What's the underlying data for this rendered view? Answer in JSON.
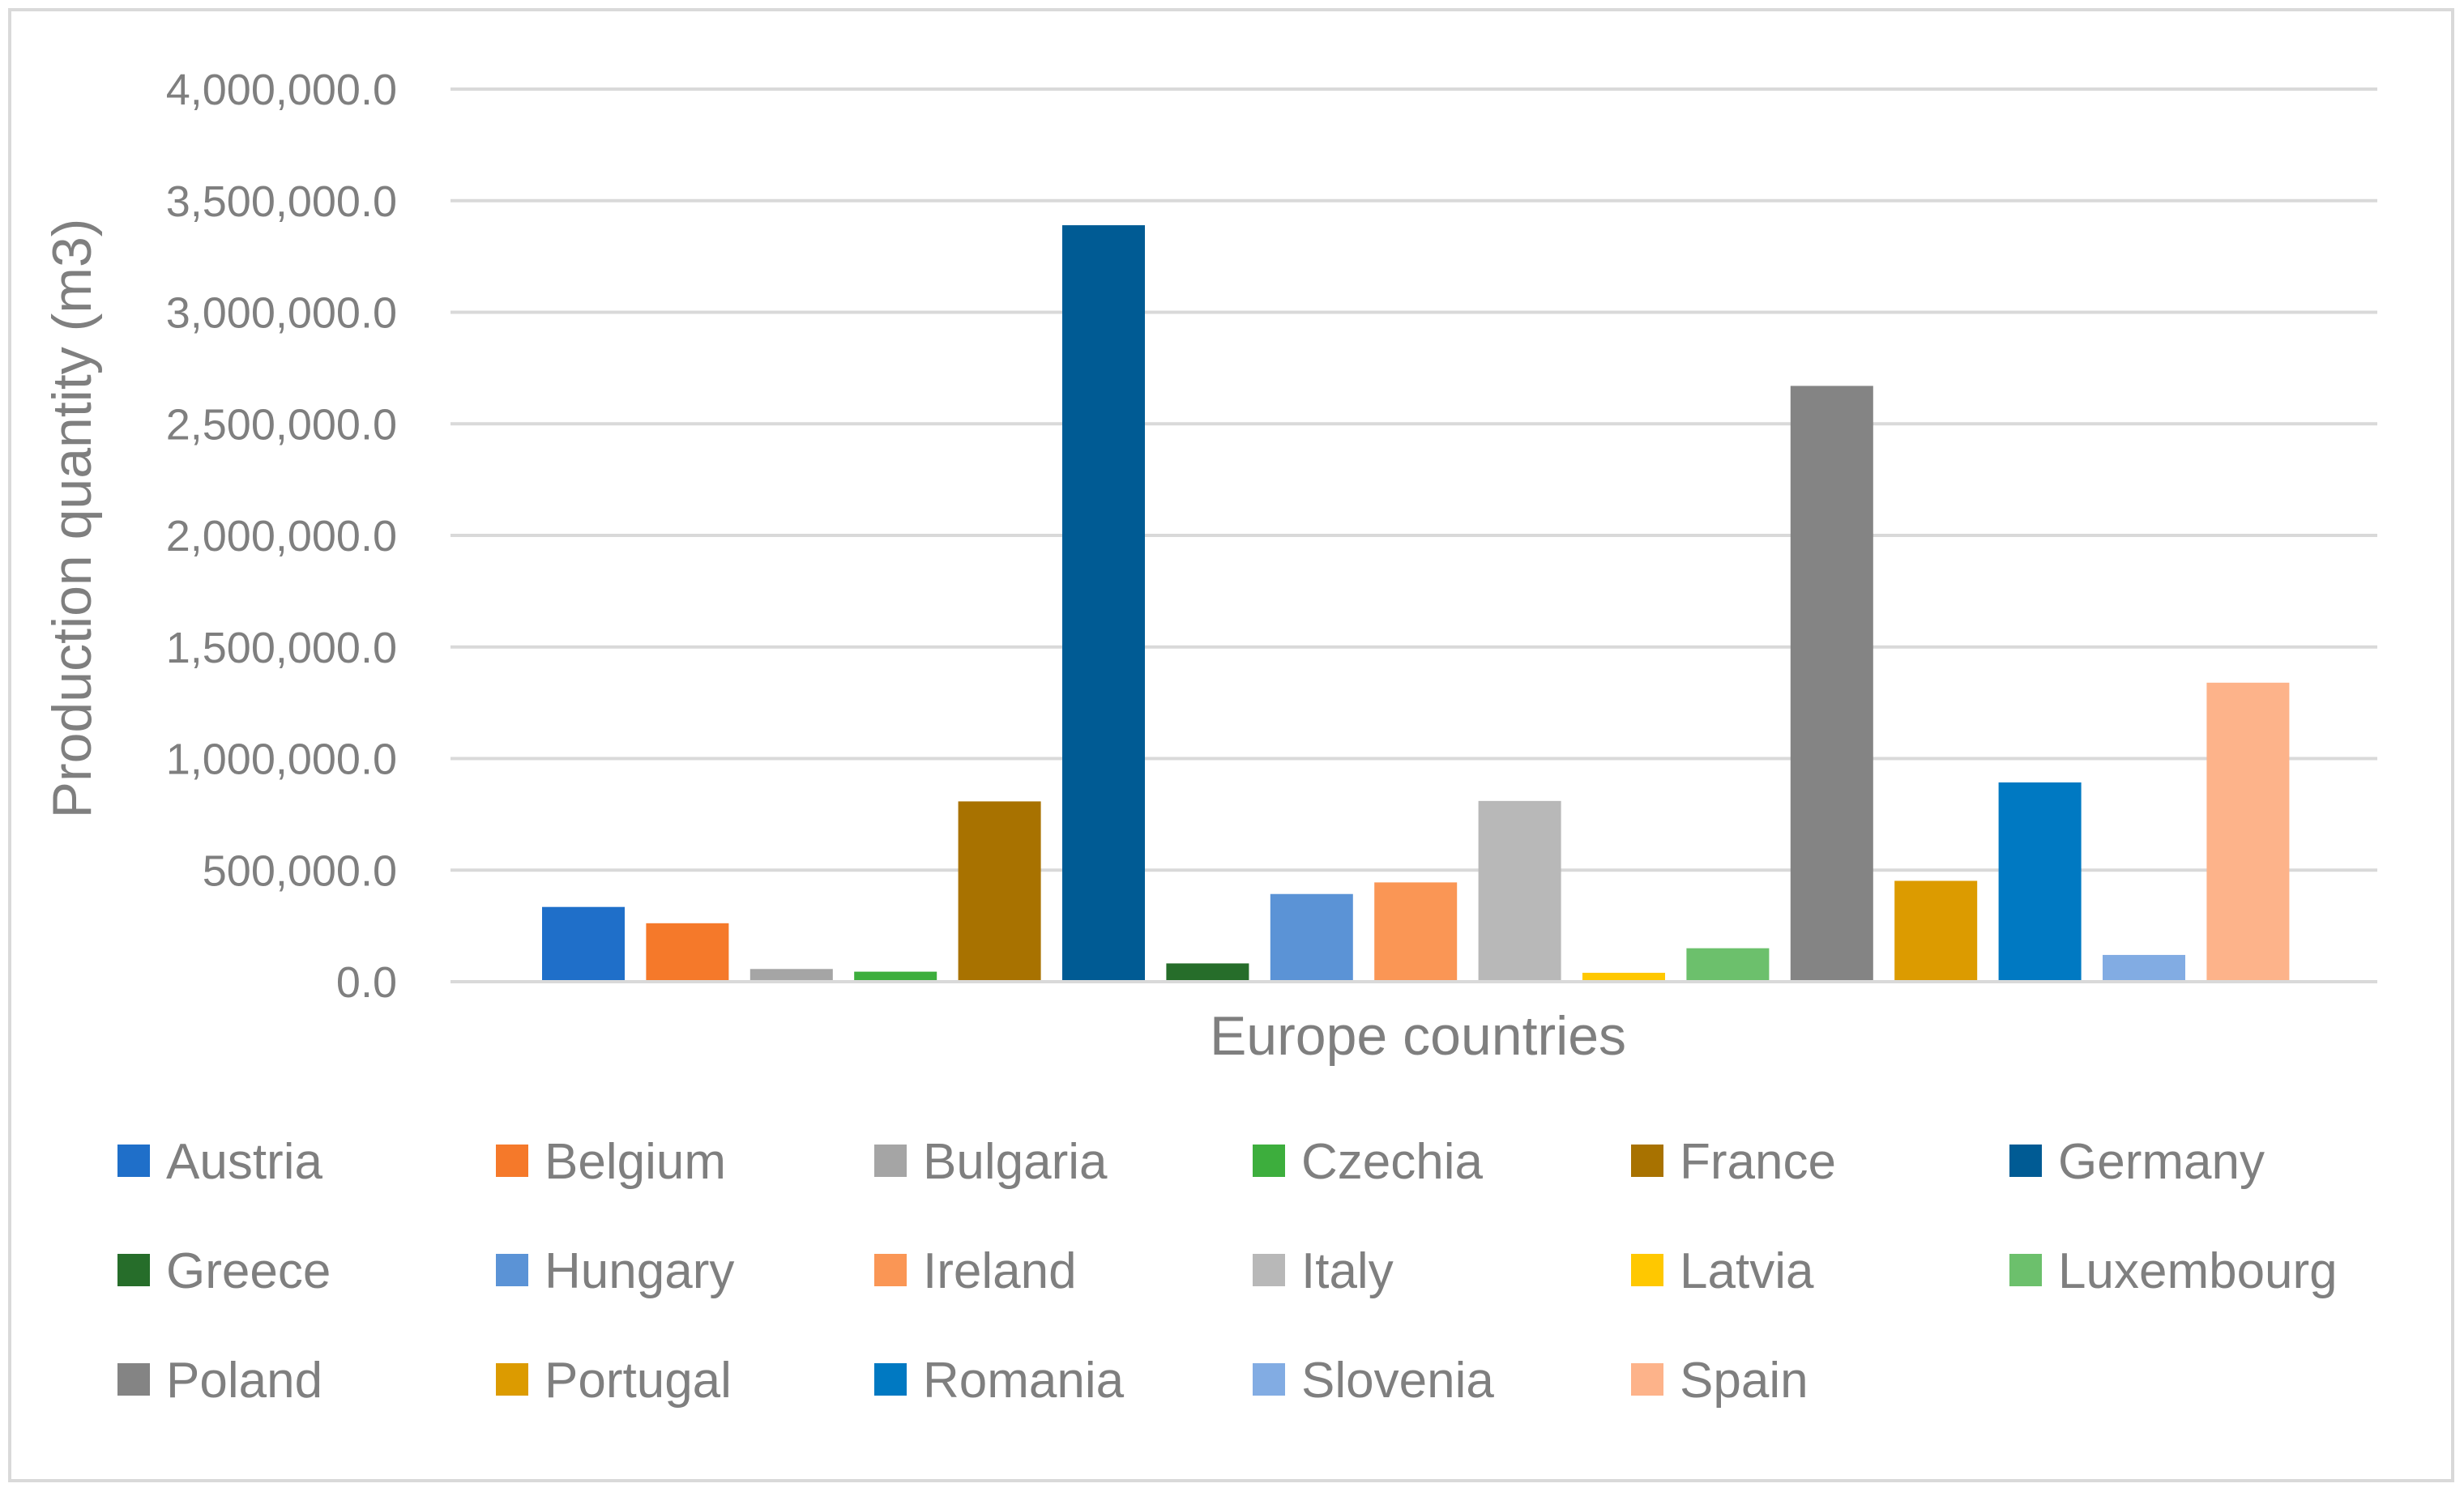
{
  "chart_data": {
    "type": "bar",
    "title": "",
    "xlabel": "Europe countries",
    "ylabel": "Production quantity (m3)",
    "ylim": [
      0,
      4000000
    ],
    "ytick_step": 500000,
    "yticks": [
      "0.0",
      "500,000.0",
      "1,000,000.0",
      "1,500,000.0",
      "2,000,000.0",
      "2,500,000.0",
      "3,000,000.0",
      "3,500,000.0",
      "4,000,000.0"
    ],
    "grid": true,
    "legend_position": "bottom",
    "series": [
      {
        "name": "Austria",
        "value": 335000,
        "color": "#1f6fc9"
      },
      {
        "name": "Belgium",
        "value": 262000,
        "color": "#f5792a"
      },
      {
        "name": "Bulgaria",
        "value": 57000,
        "color": "#a5a5a5"
      },
      {
        "name": "Czechia",
        "value": 45000,
        "color": "#3dae3d"
      },
      {
        "name": "France",
        "value": 808000,
        "color": "#a87200"
      },
      {
        "name": "Germany",
        "value": 3390000,
        "color": "#005b94"
      },
      {
        "name": "Greece",
        "value": 82000,
        "color": "#266d2a"
      },
      {
        "name": "Hungary",
        "value": 393000,
        "color": "#5b93d6"
      },
      {
        "name": "Ireland",
        "value": 445000,
        "color": "#fa9655"
      },
      {
        "name": "Italy",
        "value": 810000,
        "color": "#b8b8b8"
      },
      {
        "name": "Latvia",
        "value": 40000,
        "color": "#ffc800"
      },
      {
        "name": "Luxembourg",
        "value": 150000,
        "color": "#6cc06c"
      },
      {
        "name": "Poland",
        "value": 2670000,
        "color": "#848484"
      },
      {
        "name": "Portugal",
        "value": 452000,
        "color": "#dc9b00"
      },
      {
        "name": "Romania",
        "value": 893000,
        "color": "#0079c2"
      },
      {
        "name": "Slovenia",
        "value": 120000,
        "color": "#82ace3"
      },
      {
        "name": "Spain",
        "value": 1340000,
        "color": "#fdb38a"
      }
    ]
  }
}
